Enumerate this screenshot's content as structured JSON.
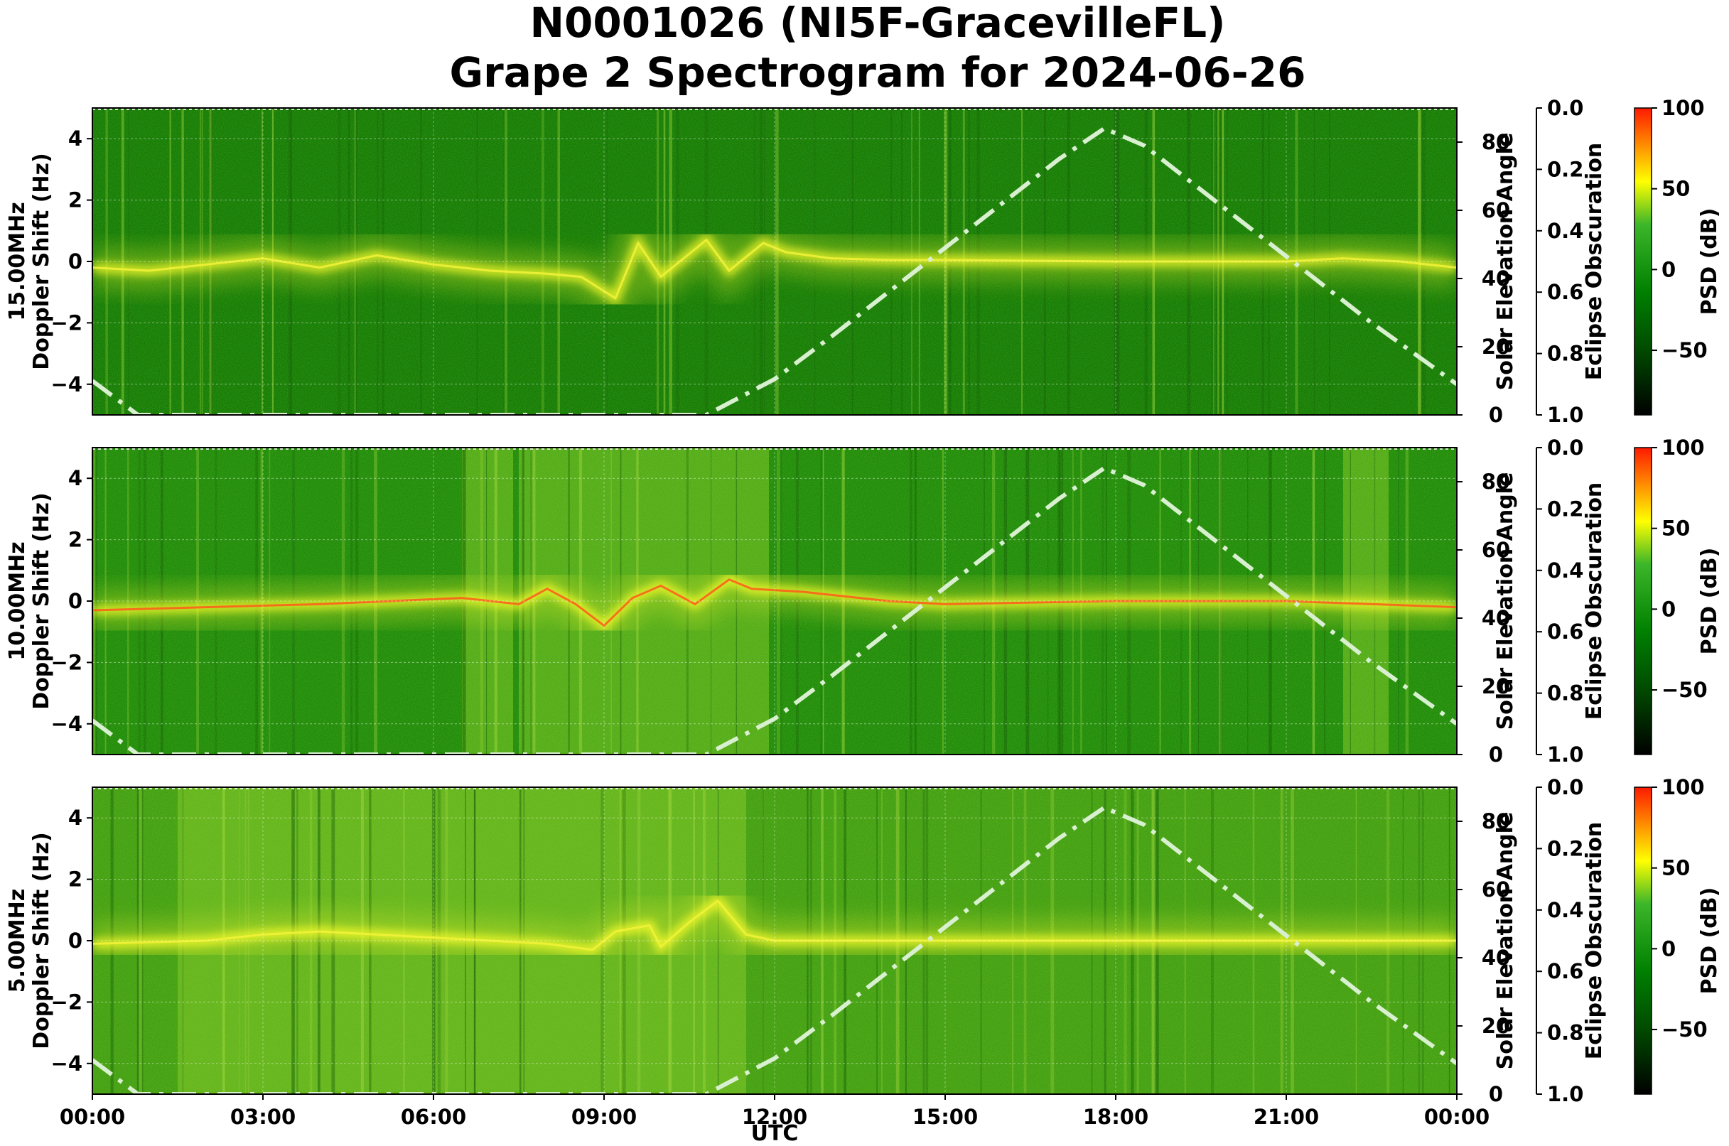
{
  "chart_data": {
    "type": "heatmap",
    "title_lines": [
      "N0001026 (NI5F-GracevilleFL)",
      "Grape 2 Spectrogram for 2024-06-26"
    ],
    "xlabel": "UTC",
    "x_ticks": [
      "00:00",
      "03:00",
      "06:00",
      "09:00",
      "12:00",
      "15:00",
      "18:00",
      "21:00",
      "00:00"
    ],
    "xlim_hours": [
      0,
      24
    ],
    "ylim": [
      -5,
      5
    ],
    "y_ticks": [
      "4",
      "2",
      "0",
      "−2",
      "−4"
    ],
    "y_tick_values": [
      4,
      2,
      0,
      -2,
      -4
    ],
    "right_ylabel": "Solar Elevation Angle",
    "right_ylim": [
      0,
      90
    ],
    "right_ticks": [
      0,
      20,
      40,
      60,
      80
    ],
    "eclipse_label": "Eclipse Obscuration",
    "eclipse_ticks": [
      "0.0",
      "0.2",
      "0.4",
      "0.6",
      "0.8",
      "1.0"
    ],
    "colorbar_label": "PSD (dB)",
    "colorbar_range": [
      -90,
      100
    ],
    "colorbar_ticks": [
      {
        "v": 100,
        "t": "100"
      },
      {
        "v": 50,
        "t": "50"
      },
      {
        "v": 0,
        "t": "0"
      },
      {
        "v": -50,
        "t": "−50"
      }
    ],
    "colormap": [
      "#000000",
      "#006400",
      "#008000",
      "#32cd32",
      "#ffff00",
      "#ff0000"
    ],
    "grid": true,
    "panels": [
      {
        "freq": "15.00MHz",
        "ylabel": "Doppler Shift (Hz)",
        "background": "#0f7a05",
        "trace": [
          [
            0,
            -0.2
          ],
          [
            1,
            -0.3
          ],
          [
            2,
            -0.1
          ],
          [
            3,
            0.1
          ],
          [
            4,
            -0.2
          ],
          [
            5,
            0.2
          ],
          [
            6,
            -0.1
          ],
          [
            7,
            -0.3
          ],
          [
            8,
            -0.4
          ],
          [
            8.6,
            -0.5
          ],
          [
            9.2,
            -1.2
          ],
          [
            9.6,
            0.6
          ],
          [
            10.0,
            -0.5
          ],
          [
            10.8,
            0.7
          ],
          [
            11.2,
            -0.3
          ],
          [
            11.8,
            0.6
          ],
          [
            12.2,
            0.3
          ],
          [
            13,
            0.1
          ],
          [
            14,
            0.05
          ],
          [
            15,
            0.05
          ],
          [
            18,
            0.0
          ],
          [
            21,
            0.0
          ],
          [
            22,
            0.1
          ],
          [
            23,
            0.0
          ],
          [
            24,
            -0.2
          ]
        ],
        "bands": []
      },
      {
        "freq": "10.00MHz",
        "ylabel": "Doppler Shift (Hz)",
        "background": "#1a8a0a",
        "trace": [
          [
            0,
            -0.3
          ],
          [
            2,
            -0.2
          ],
          [
            4,
            -0.1
          ],
          [
            6.5,
            0.1
          ],
          [
            7.5,
            -0.1
          ],
          [
            8.0,
            0.4
          ],
          [
            8.5,
            -0.1
          ],
          [
            9.0,
            -0.8
          ],
          [
            9.5,
            0.1
          ],
          [
            10.0,
            0.5
          ],
          [
            10.6,
            -0.1
          ],
          [
            11.2,
            0.7
          ],
          [
            11.6,
            0.4
          ],
          [
            12.5,
            0.3
          ],
          [
            14,
            0.0
          ],
          [
            15,
            -0.1
          ],
          [
            18,
            0.0
          ],
          [
            21,
            0.0
          ],
          [
            24,
            -0.2
          ]
        ],
        "bands": [
          [
            6.5,
            7.4
          ],
          [
            7.5,
            11.5
          ],
          [
            11.5,
            11.9
          ],
          [
            22.0,
            22.8
          ]
        ]
      },
      {
        "freq": "5.00MHz",
        "ylabel": "Doppler Shift (Hz)",
        "background": "#3e9e12",
        "trace": [
          [
            0,
            -0.1
          ],
          [
            2,
            0.0
          ],
          [
            3,
            0.2
          ],
          [
            4,
            0.3
          ],
          [
            5,
            0.2
          ],
          [
            6,
            0.1
          ],
          [
            7,
            0.0
          ],
          [
            8,
            -0.1
          ],
          [
            8.8,
            -0.3
          ],
          [
            9.2,
            0.3
          ],
          [
            9.8,
            0.5
          ],
          [
            10.0,
            -0.2
          ],
          [
            10.5,
            0.6
          ],
          [
            11.0,
            1.3
          ],
          [
            11.5,
            0.2
          ],
          [
            12,
            0.0
          ],
          [
            24,
            0.0
          ]
        ],
        "bands": [
          [
            1.5,
            11.5
          ]
        ]
      }
    ],
    "solar_elevation_deg": [
      [
        0,
        10
      ],
      [
        0.8,
        0
      ],
      [
        10.8,
        0
      ],
      [
        12.0,
        10.5
      ],
      [
        13.0,
        23
      ],
      [
        14.0,
        36
      ],
      [
        15.0,
        49
      ],
      [
        16.0,
        62
      ],
      [
        17.0,
        75
      ],
      [
        17.8,
        84
      ],
      [
        18.5,
        79
      ],
      [
        19.5,
        66
      ],
      [
        20.5,
        53
      ],
      [
        21.5,
        40
      ],
      [
        22.5,
        27
      ],
      [
        23.5,
        15
      ],
      [
        24.0,
        9
      ]
    ]
  }
}
